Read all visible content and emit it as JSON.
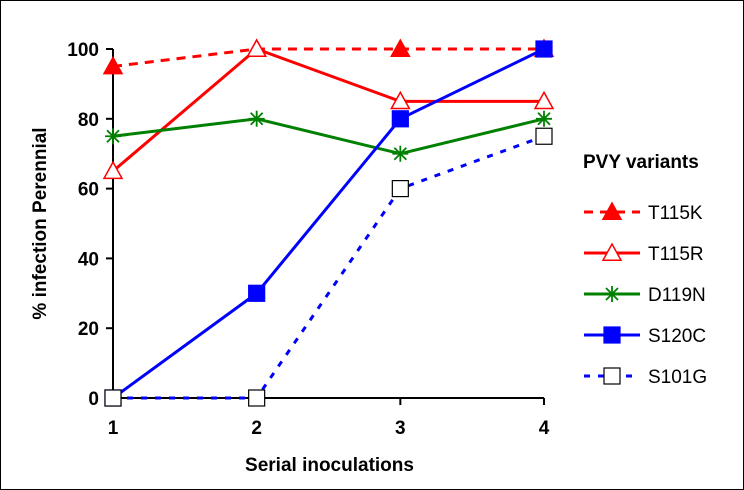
{
  "chart_data": {
    "type": "line",
    "title": "",
    "xlabel": "Serial inoculations",
    "ylabel": "% infection Perennial",
    "categories": [
      "1",
      "2",
      "3",
      "4"
    ],
    "ylim": [
      0,
      100
    ],
    "yticks": [
      "0",
      "20",
      "40",
      "60",
      "80",
      "100"
    ],
    "grid": false,
    "legend": {
      "title": "PVY variants",
      "placement": "right"
    },
    "series": [
      {
        "name": "T115K",
        "values": [
          95,
          100,
          100,
          100
        ],
        "color": "#ff0000",
        "dash": "dashed",
        "marker": "filled-triangle"
      },
      {
        "name": "T115R",
        "values": [
          65,
          100,
          85,
          85
        ],
        "color": "#ff0000",
        "dash": "solid",
        "marker": "open-triangle"
      },
      {
        "name": "D119N",
        "values": [
          75,
          80,
          70,
          80
        ],
        "color": "#008000",
        "dash": "solid",
        "marker": "asterisk"
      },
      {
        "name": "S120C",
        "values": [
          0,
          30,
          80,
          100
        ],
        "color": "#0000ff",
        "dash": "solid",
        "marker": "filled-square"
      },
      {
        "name": "S101G",
        "values": [
          0,
          0,
          60,
          75
        ],
        "color": "#0000ff",
        "dash": "dotted",
        "marker": "open-square"
      }
    ]
  }
}
